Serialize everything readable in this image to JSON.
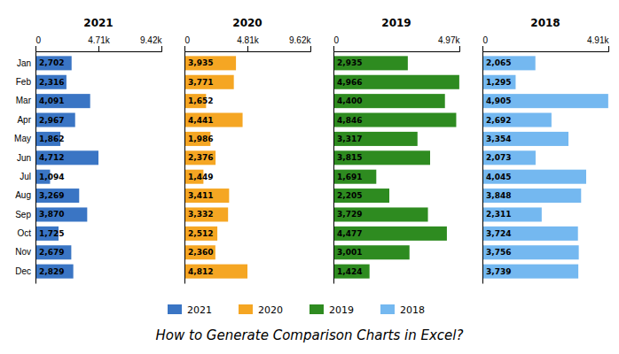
{
  "title": "How to Generate Comparison Charts in Excel?",
  "chart_data": [
    {
      "type": "bar",
      "orientation": "horizontal",
      "title": "2021",
      "legend": "bottom",
      "data_labels": true,
      "categories": [
        "Jan",
        "Feb",
        "Mar",
        "Apr",
        "May",
        "Jun",
        "Jul",
        "Aug",
        "Sep",
        "Oct",
        "Nov",
        "Dec"
      ],
      "series": [
        {
          "name": "2021",
          "color": "#3A75C4",
          "values": [
            2702,
            2316,
            4091,
            2967,
            1862,
            4712,
            1094,
            3269,
            3870,
            1725,
            2679,
            2829
          ],
          "value_labels": [
            "2,702",
            "2,316",
            "4,091",
            "2,967",
            "1,862",
            "4,712",
            "1,094",
            "3,269",
            "3,870",
            "1,725",
            "2,679",
            "2,829"
          ]
        }
      ],
      "xlim": [
        0,
        9420
      ],
      "xticks": [
        0,
        {
          "value": 4710,
          "label": "4.71k"
        },
        {
          "value": 9420,
          "label": "9.42k"
        }
      ]
    },
    {
      "type": "bar",
      "orientation": "horizontal",
      "title": "2020",
      "legend": "bottom",
      "data_labels": true,
      "tick_labels": "x",
      "categories": [
        "Jan",
        "Feb",
        "Mar",
        "Apr",
        "May",
        "Jun",
        "Jul",
        "Aug",
        "Sep",
        "Oct",
        "Nov",
        "Dec"
      ],
      "series": [
        {
          "name": "2020",
          "color": "#F5A623",
          "values": [
            3935,
            3771,
            1652,
            4441,
            1986,
            2376,
            1449,
            3411,
            3332,
            2512,
            2360,
            4812
          ],
          "value_labels": [
            "3,935",
            "3,771",
            "1,652",
            "4,441",
            "1,986",
            "2,376",
            "1,449",
            "3,411",
            "3,332",
            "2,512",
            "2,360",
            "4,812"
          ]
        }
      ],
      "xlim": [
        0,
        9620
      ],
      "xticks": [
        0,
        {
          "value": 4810,
          "label": "4.81k"
        },
        {
          "value": 9620,
          "label": "9.62k"
        }
      ]
    },
    {
      "type": "bar",
      "orientation": "horizontal",
      "title": "2019",
      "legend": "bottom",
      "data_labels": true,
      "tick_labels": "x",
      "categories": [
        "Jan",
        "Feb",
        "Mar",
        "Apr",
        "May",
        "Jun",
        "Jul",
        "Aug",
        "Sep",
        "Oct",
        "Nov",
        "Dec"
      ],
      "series": [
        {
          "name": "2019",
          "color": "#2E8B20",
          "values": [
            2935,
            4966,
            4400,
            4846,
            3317,
            3815,
            1691,
            2205,
            3729,
            4477,
            3001,
            1424
          ],
          "value_labels": [
            "2,935",
            "4,966",
            "4,400",
            "4,846",
            "3,317",
            "3,815",
            "1,691",
            "2,205",
            "3,729",
            "4,477",
            "3,001",
            "1,424"
          ]
        }
      ],
      "xlim": [
        0,
        4970
      ],
      "xticks": [
        0,
        {
          "value": 4970,
          "label": "4.97k"
        }
      ]
    },
    {
      "type": "bar",
      "orientation": "horizontal",
      "title": "2018",
      "legend": "bottom",
      "data_labels": true,
      "tick_labels": "x",
      "categories": [
        "Jan",
        "Feb",
        "Mar",
        "Apr",
        "May",
        "Jun",
        "Jul",
        "Aug",
        "Sep",
        "Oct",
        "Nov",
        "Dec"
      ],
      "series": [
        {
          "name": "2018",
          "color": "#74B8F0",
          "values": [
            2065,
            1295,
            4905,
            2692,
            3354,
            2073,
            4045,
            3848,
            2311,
            3724,
            3756,
            3739
          ],
          "value_labels": [
            "2,065",
            "1,295",
            "4,905",
            "2,692",
            "3,354",
            "2,073",
            "4,045",
            "3,848",
            "2,311",
            "3,724",
            "3,756",
            "3,739"
          ]
        }
      ],
      "xlim": [
        0,
        4910
      ],
      "xticks": [
        0,
        {
          "value": 4910,
          "label": "4.91k"
        }
      ]
    }
  ]
}
